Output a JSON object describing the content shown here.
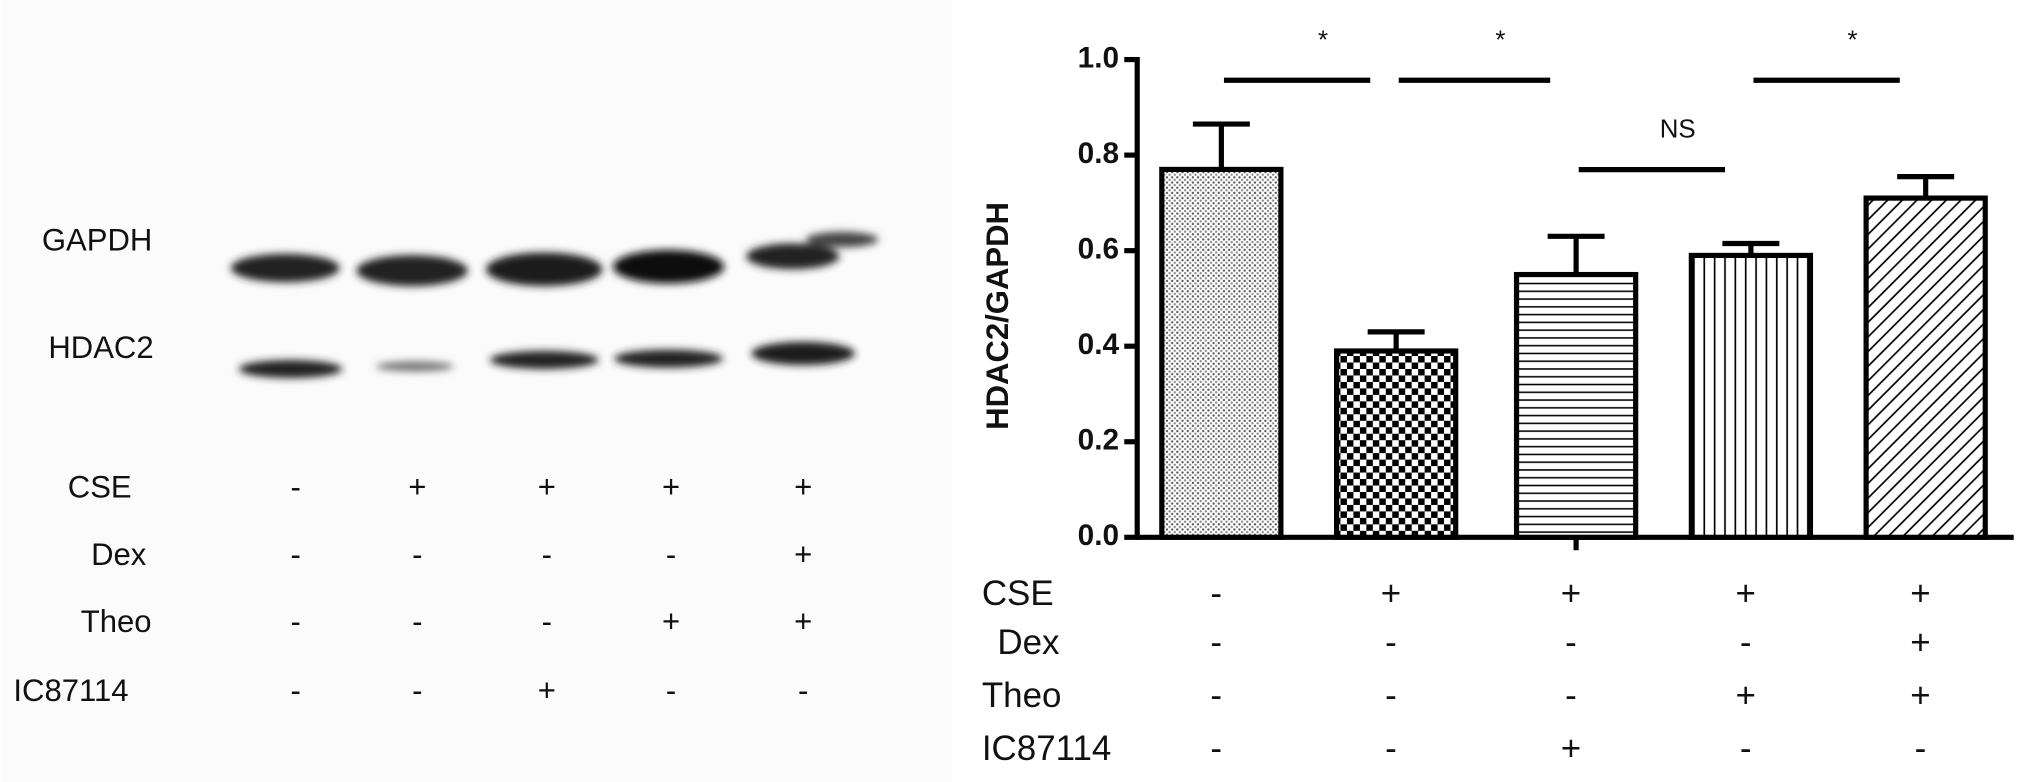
{
  "blot": {
    "labels": [
      "GAPDH",
      "HDAC2"
    ],
    "conditions": [
      {
        "name": "CSE",
        "values": [
          "-",
          "+",
          "+",
          "+",
          "+"
        ]
      },
      {
        "name": "Dex",
        "values": [
          "-",
          "-",
          "-",
          "-",
          "+"
        ]
      },
      {
        "name": "Theo",
        "values": [
          "-",
          "-",
          "-",
          "+",
          "+"
        ]
      },
      {
        "name": "IC87114",
        "values": [
          "-",
          "-",
          "+",
          "-",
          "-"
        ]
      }
    ]
  },
  "chart_data": {
    "type": "bar",
    "ylabel": "HDAC2/GAPDH",
    "values": [
      0.77,
      0.39,
      0.55,
      0.59,
      0.71
    ],
    "errors": [
      0.095,
      0.04,
      0.08,
      0.025,
      0.045
    ],
    "patterns": [
      "dots",
      "checker",
      "horizontal",
      "vertical",
      "diagonal"
    ],
    "ylim": [
      0,
      1
    ],
    "yticks": [
      {
        "value": 0,
        "label": "0.0"
      },
      0.2,
      0.4,
      0.6,
      0.8,
      {
        "value": 1,
        "label": "1.0"
      }
    ],
    "comparisons": [
      {
        "label": "*",
        "bars": [
          0,
          1
        ]
      },
      {
        "label": "*",
        "bars": [
          1,
          2
        ]
      },
      {
        "label": "NS",
        "bars": [
          2,
          3
        ]
      },
      {
        "label": "*",
        "bars": [
          3,
          4
        ]
      }
    ],
    "conditions": [
      {
        "name": "CSE",
        "values": [
          "-",
          "+",
          "+",
          "+",
          "+"
        ]
      },
      {
        "name": "Dex",
        "values": [
          "-",
          "-",
          "-",
          "-",
          "+"
        ]
      },
      {
        "name": "Theo",
        "values": [
          "-",
          "-",
          "-",
          "+",
          "+"
        ]
      },
      {
        "name": "IC87114",
        "values": [
          "-",
          "-",
          "+",
          "-",
          "-"
        ]
      }
    ]
  }
}
